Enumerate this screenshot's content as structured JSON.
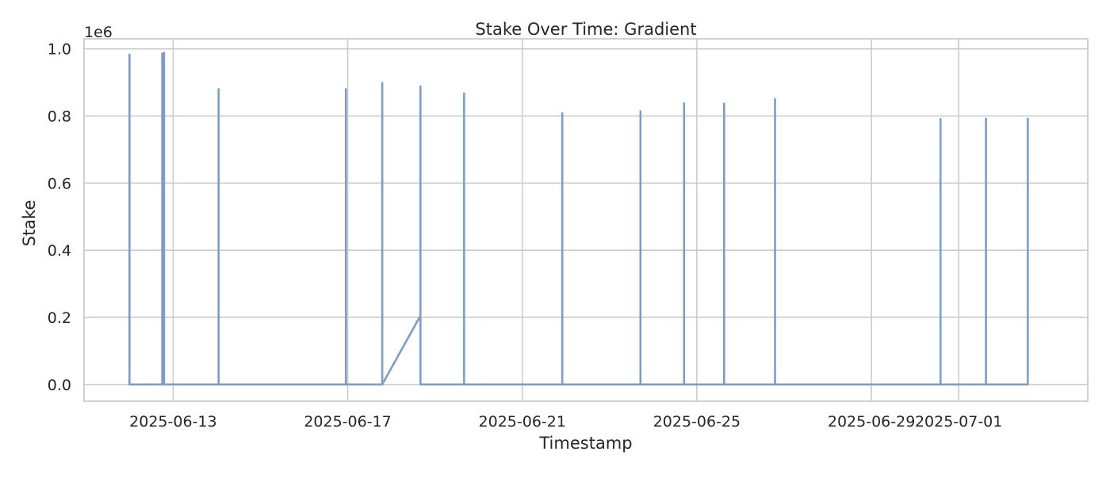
{
  "chart_data": {
    "type": "line",
    "title": "Stake Over Time: Gradient",
    "xlabel": "Timestamp",
    "ylabel": "Stake",
    "y_offset_label": "1e6",
    "x_tick_labels": [
      "2025-06-13",
      "2025-06-17",
      "2025-06-21",
      "2025-06-25",
      "2025-06-29",
      "2025-07-01"
    ],
    "y_tick_labels": [
      "0.0",
      "0.2",
      "0.4",
      "0.6",
      "0.8",
      "1.0"
    ],
    "y_ticks": [
      0,
      0.2,
      0.4,
      0.6,
      0.8,
      1.0
    ],
    "xlim": [
      "2025-06-10T23:00",
      "2025-07-03T23:00"
    ],
    "ylim": [
      -0.05,
      1.03
    ],
    "grid": true,
    "line_color": "#7f9cc8",
    "series": [
      {
        "points": [
          [
            "2025-06-12T00:00",
            0
          ],
          [
            "2025-06-12T00:00",
            0.983
          ],
          [
            "2025-06-12T00:00",
            0
          ],
          [
            "2025-06-12T18:00",
            0
          ],
          [
            "2025-06-12T18:00",
            0.986
          ],
          [
            "2025-06-12T18:00",
            0
          ],
          [
            "2025-06-12T19:00",
            0
          ],
          [
            "2025-06-12T19:00",
            0.988
          ],
          [
            "2025-06-12T19:00",
            0
          ],
          [
            "2025-06-14T01:00",
            0
          ],
          [
            "2025-06-14T01:00",
            0.88
          ],
          [
            "2025-06-14T01:00",
            0
          ],
          [
            "2025-06-16T23:00",
            0
          ],
          [
            "2025-06-16T23:00",
            0.88
          ],
          [
            "2025-06-16T23:00",
            0
          ],
          [
            "2025-06-17T19:00",
            0
          ],
          [
            "2025-06-17T19:00",
            0.898
          ],
          [
            "2025-06-17T19:00",
            0
          ],
          [
            "2025-06-18T16:00",
            0.205
          ],
          [
            "2025-06-18T16:00",
            0.888
          ],
          [
            "2025-06-18T16:00",
            0
          ],
          [
            "2025-06-19T16:00",
            0
          ],
          [
            "2025-06-19T16:00",
            0.867
          ],
          [
            "2025-06-19T16:00",
            0
          ],
          [
            "2025-06-21T22:00",
            0
          ],
          [
            "2025-06-21T22:00",
            0.808
          ],
          [
            "2025-06-21T22:00",
            0
          ],
          [
            "2025-06-23T17:00",
            0
          ],
          [
            "2025-06-23T17:00",
            0.814
          ],
          [
            "2025-06-23T17:00",
            0
          ],
          [
            "2025-06-24T17:00",
            0
          ],
          [
            "2025-06-24T17:00",
            0.838
          ],
          [
            "2025-06-24T17:00",
            0
          ],
          [
            "2025-06-25T15:00",
            0
          ],
          [
            "2025-06-25T15:00",
            0.837
          ],
          [
            "2025-06-25T15:00",
            0
          ],
          [
            "2025-06-26T19:00",
            0
          ],
          [
            "2025-06-26T19:00",
            0.85
          ],
          [
            "2025-06-26T19:00",
            0
          ],
          [
            "2025-06-30T14:00",
            0
          ],
          [
            "2025-06-30T14:00",
            0.791
          ],
          [
            "2025-06-30T14:00",
            0
          ],
          [
            "2025-07-01T15:00",
            0
          ],
          [
            "2025-07-01T15:00",
            0.792
          ],
          [
            "2025-07-01T15:00",
            0
          ],
          [
            "2025-07-02T14:00",
            0
          ],
          [
            "2025-07-02T14:00",
            0.792
          ],
          [
            "2025-07-02T14:00",
            0
          ]
        ]
      }
    ]
  }
}
